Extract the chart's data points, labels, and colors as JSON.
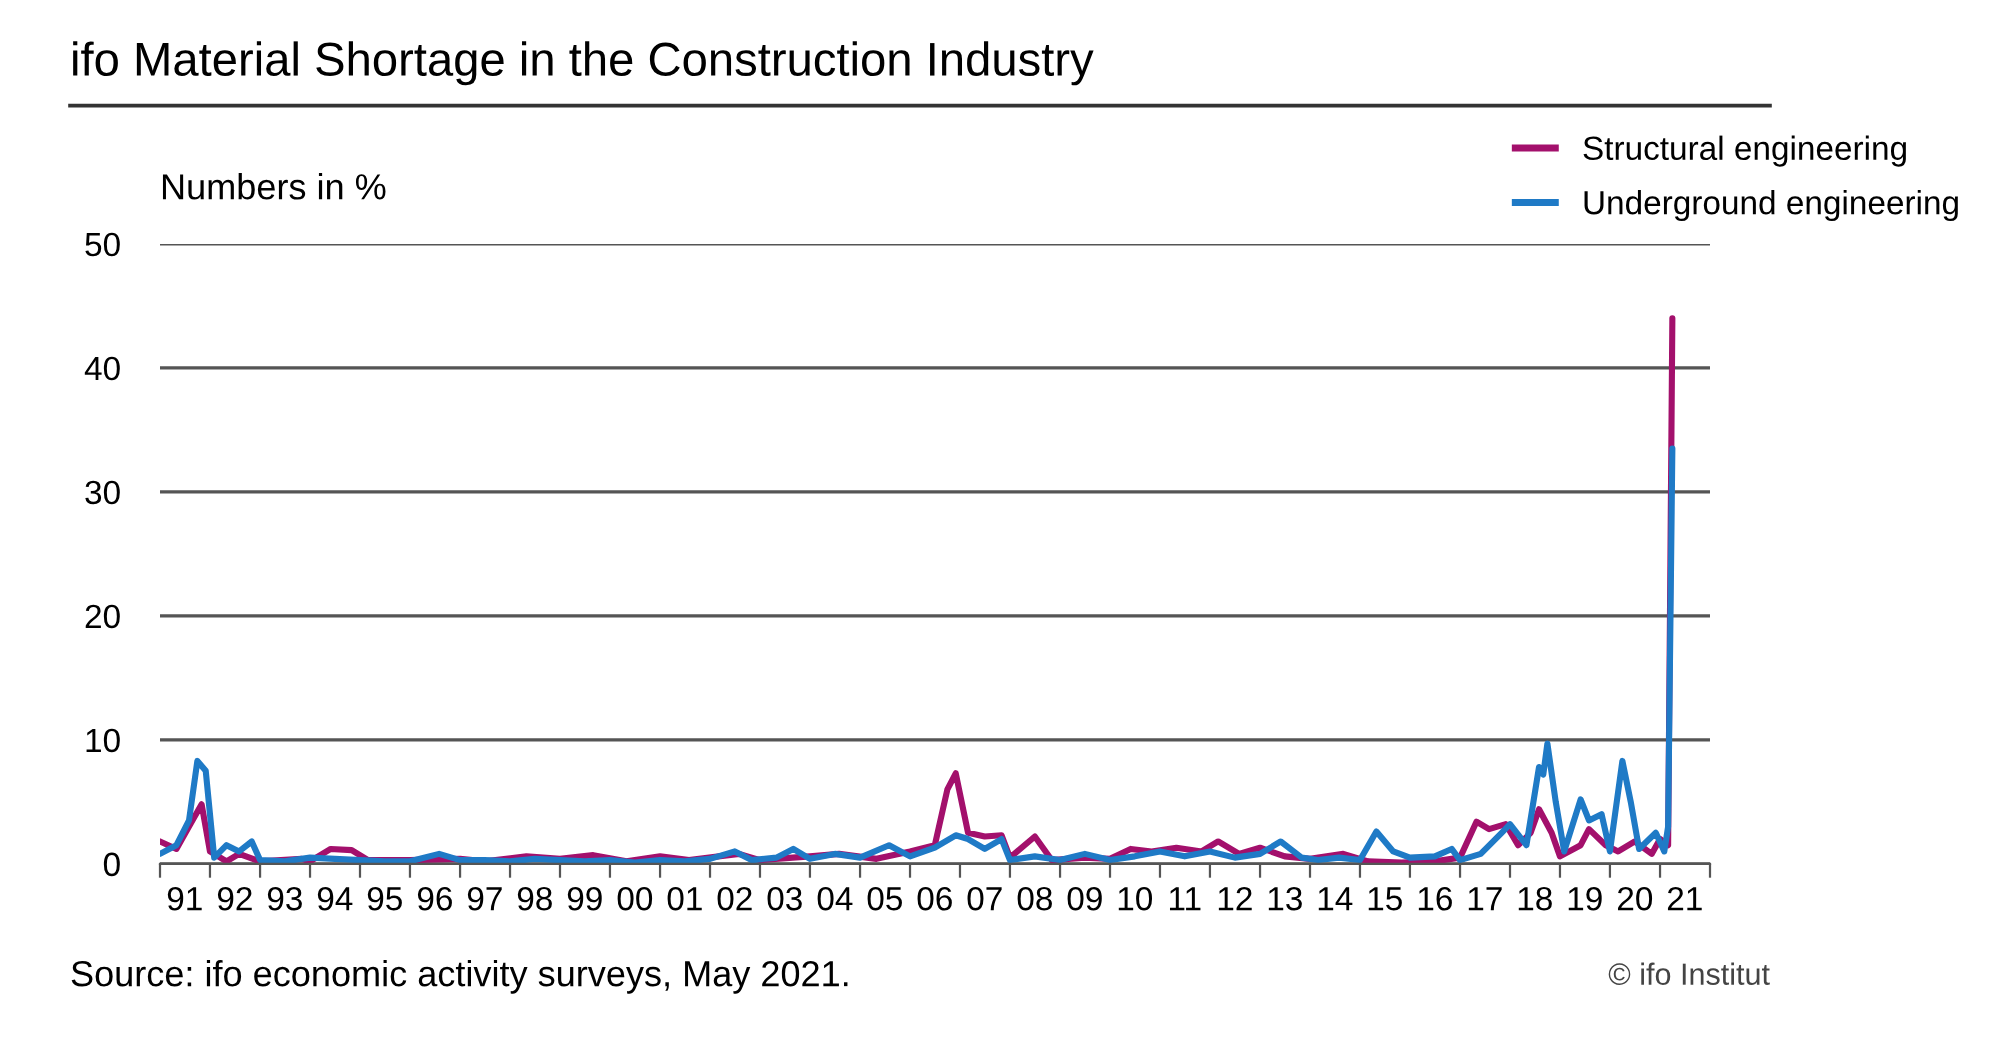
{
  "chart_data": {
    "type": "line",
    "title": "ifo Material Shortage in the Construction Industry",
    "ylabel": "Numbers in %",
    "xlim": [
      "1991-01",
      "2022-01"
    ],
    "ylim": [
      0,
      50
    ],
    "yticks": [
      0,
      10,
      20,
      30,
      40,
      50
    ],
    "xticks": [
      {
        "value": "1991-01",
        "label": null
      },
      {
        "value": "1992-01",
        "label": null
      },
      {
        "value": "1993-01",
        "label": null
      },
      {
        "value": "1994-01",
        "label": null
      },
      {
        "value": "1995-01",
        "label": null
      },
      {
        "value": "1996-01",
        "label": null
      },
      {
        "value": "1997-01",
        "label": null
      },
      {
        "value": "1998-01",
        "label": null
      },
      {
        "value": "1999-01",
        "label": null
      },
      {
        "value": "2000-01",
        "label": null
      },
      {
        "value": "2001-01",
        "label": null
      },
      {
        "value": "2002-01",
        "label": null
      },
      {
        "value": "2003-01",
        "label": null
      },
      {
        "value": "2004-01",
        "label": null
      },
      {
        "value": "2005-01",
        "label": null
      },
      {
        "value": "2006-01",
        "label": null
      },
      {
        "value": "2007-01",
        "label": null
      },
      {
        "value": "2008-01",
        "label": null
      },
      {
        "value": "2009-01",
        "label": null
      },
      {
        "value": "2010-01",
        "label": null
      },
      {
        "value": "2011-01",
        "label": null
      },
      {
        "value": "2012-01",
        "label": null
      },
      {
        "value": "2013-01",
        "label": null
      },
      {
        "value": "2014-01",
        "label": null
      },
      {
        "value": "2015-01",
        "label": null
      },
      {
        "value": "2016-01",
        "label": null
      },
      {
        "value": "2017-01",
        "label": null
      },
      {
        "value": "2018-01",
        "label": null
      },
      {
        "value": "2019-01",
        "label": null
      },
      {
        "value": "2020-01",
        "label": null
      },
      {
        "value": "2021-01",
        "label": null
      },
      {
        "value": "2022-01",
        "label": null
      },
      {
        "value": "1991-07",
        "label": "91"
      },
      {
        "value": "1992-07",
        "label": "92"
      },
      {
        "value": "1993-07",
        "label": "93"
      },
      {
        "value": "1994-07",
        "label": "94"
      },
      {
        "value": "1995-07",
        "label": "95"
      },
      {
        "value": "1996-07",
        "label": "96"
      },
      {
        "value": "1997-07",
        "label": "97"
      },
      {
        "value": "1998-07",
        "label": "98"
      },
      {
        "value": "1999-07",
        "label": "99"
      },
      {
        "value": "2000-07",
        "label": "00"
      },
      {
        "value": "2001-07",
        "label": "01"
      },
      {
        "value": "2002-07",
        "label": "02"
      },
      {
        "value": "2003-07",
        "label": "03"
      },
      {
        "value": "2004-07",
        "label": "04"
      },
      {
        "value": "2005-07",
        "label": "05"
      },
      {
        "value": "2006-07",
        "label": "06"
      },
      {
        "value": "2007-07",
        "label": "07"
      },
      {
        "value": "2008-07",
        "label": "08"
      },
      {
        "value": "2009-07",
        "label": "09"
      },
      {
        "value": "2010-07",
        "label": "10"
      },
      {
        "value": "2011-07",
        "label": "11"
      },
      {
        "value": "2012-07",
        "label": "12"
      },
      {
        "value": "2013-07",
        "label": "13"
      },
      {
        "value": "2014-07",
        "label": "14"
      },
      {
        "value": "2015-07",
        "label": "15"
      },
      {
        "value": "2016-07",
        "label": "16"
      },
      {
        "value": "2017-07",
        "label": "17"
      },
      {
        "value": "2018-07",
        "label": "18"
      },
      {
        "value": "2019-07",
        "label": "19"
      },
      {
        "value": "2020-07",
        "label": "20"
      },
      {
        "value": "2021-07",
        "label": "21"
      }
    ],
    "grid": "y",
    "legend": "top right",
    "annotations": [
      "Source: ifo economic activity surveys, May 2021.",
      "© ifo Institut"
    ],
    "series": [
      {
        "name": "Structural engineering",
        "color": "#a3106c",
        "x": [
          "1991-01",
          "1991-05",
          "1991-08",
          "1991-11",
          "1992-01",
          "1992-05",
          "1992-08",
          "1993-01",
          "1993-11",
          "1994-01",
          "1994-06",
          "1994-11",
          "1995-03",
          "1996-01",
          "1997-01",
          "1997-07",
          "1998-05",
          "1999-01",
          "1999-09",
          "2000-05",
          "2001-01",
          "2001-08",
          "2002-08",
          "2003-01",
          "2004-01",
          "2004-08",
          "2005-05",
          "2006-01",
          "2006-07",
          "2006-10",
          "2006-12",
          "2007-03",
          "2007-07",
          "2007-11",
          "2008-01",
          "2008-07",
          "2008-11",
          "2009-07",
          "2010-01",
          "2010-06",
          "2010-11",
          "2011-05",
          "2011-11",
          "2012-03",
          "2012-08",
          "2013-01",
          "2013-07",
          "2014-01",
          "2014-09",
          "2015-03",
          "2015-11",
          "2016-07",
          "2017-01",
          "2017-05",
          "2017-08",
          "2017-12",
          "2018-03",
          "2018-06",
          "2018-08",
          "2018-11",
          "2019-01",
          "2019-06",
          "2019-08",
          "2019-12",
          "2020-03",
          "2020-07",
          "2020-11",
          "2021-01",
          "2021-03",
          "2021-04"
        ],
        "values": [
          1.8,
          1.2,
          3,
          4.8,
          1,
          0.2,
          0.8,
          0.2,
          0.4,
          0.2,
          1.2,
          1.1,
          0.3,
          0.3,
          0.4,
          0.2,
          0.6,
          0.4,
          0.7,
          0.2,
          0.6,
          0.3,
          0.8,
          0.3,
          0.6,
          0.8,
          0.4,
          1,
          1.5,
          6,
          7.3,
          2.5,
          2.2,
          2.3,
          0.5,
          2.2,
          0.3,
          0.5,
          0.4,
          1.2,
          1.0,
          1.3,
          1.0,
          1.8,
          0.8,
          1.3,
          0.6,
          0.4,
          0.8,
          0.2,
          0.1,
          0.2,
          0.5,
          3.4,
          2.8,
          3.2,
          1.5,
          2.5,
          4.4,
          2.5,
          0.6,
          1.5,
          2.8,
          1.5,
          1.0,
          1.8,
          0.8,
          2.0,
          1.5,
          44
        ]
      },
      {
        "name": "Underground engineering",
        "color": "#1f7ac6",
        "x": [
          "1991-01",
          "1991-05",
          "1991-08",
          "1991-10",
          "1991-12",
          "1992-02",
          "1992-05",
          "1992-08",
          "1992-11",
          "1993-01",
          "1993-07",
          "1994-01",
          "1994-07",
          "1995-01",
          "1995-07",
          "1996-01",
          "1996-08",
          "1997-01",
          "1997-07",
          "1998-01",
          "1998-07",
          "1999-01",
          "1999-07",
          "2000-01",
          "2000-07",
          "2001-01",
          "2001-07",
          "2002-01",
          "2002-07",
          "2002-11",
          "2003-05",
          "2003-09",
          "2004-01",
          "2004-07",
          "2005-01",
          "2005-08",
          "2006-01",
          "2006-07",
          "2006-12",
          "2007-03",
          "2007-07",
          "2007-11",
          "2008-01",
          "2008-07",
          "2009-01",
          "2009-07",
          "2010-01",
          "2010-07",
          "2011-01",
          "2011-07",
          "2012-01",
          "2012-07",
          "2013-01",
          "2013-06",
          "2013-11",
          "2014-03",
          "2014-08",
          "2015-01",
          "2015-05",
          "2015-09",
          "2016-01",
          "2016-07",
          "2016-11",
          "2017-01",
          "2017-06",
          "2017-11",
          "2018-01",
          "2018-05",
          "2018-08",
          "2018-09",
          "2018-10",
          "2018-12",
          "2019-02",
          "2019-06",
          "2019-08",
          "2019-11",
          "2020-01",
          "2020-04",
          "2020-06",
          "2020-08",
          "2020-12",
          "2021-02",
          "2021-03",
          "2021-04"
        ],
        "values": [
          0.8,
          1.5,
          3.5,
          8.3,
          7.5,
          0.5,
          1.5,
          1,
          1.8,
          0.3,
          0.2,
          0.5,
          0.4,
          0.3,
          0.2,
          0.2,
          0.8,
          0.3,
          0.3,
          0.2,
          0.4,
          0.3,
          0.2,
          0.3,
          0.1,
          0.3,
          0.2,
          0.4,
          1,
          0.3,
          0.5,
          1.2,
          0.4,
          0.8,
          0.5,
          1.5,
          0.6,
          1.3,
          2.3,
          2.0,
          1.2,
          2.0,
          0.3,
          0.6,
          0.3,
          0.8,
          0.3,
          0.6,
          1.0,
          0.6,
          1.0,
          0.5,
          0.8,
          1.8,
          0.5,
          0.3,
          0.5,
          0.3,
          2.6,
          1.0,
          0.5,
          0.6,
          1.2,
          0.3,
          0.8,
          2.5,
          3.2,
          1.5,
          7.8,
          7.2,
          9.7,
          5,
          1.0,
          5.2,
          3.5,
          4,
          1.0,
          8.3,
          5,
          1.2,
          2.5,
          1,
          3,
          33.5
        ]
      }
    ]
  }
}
